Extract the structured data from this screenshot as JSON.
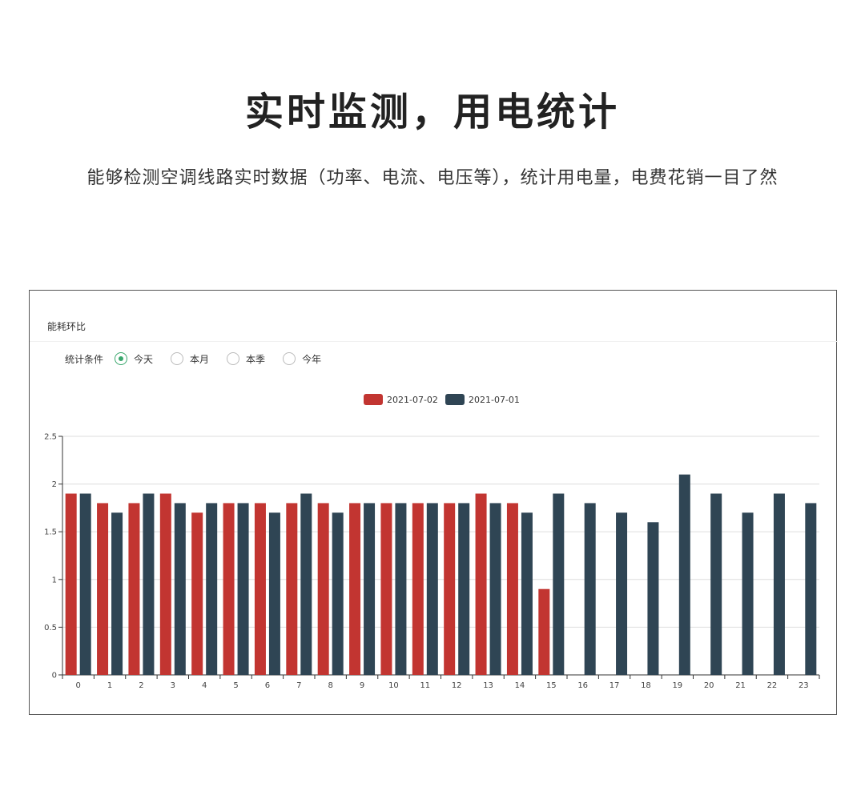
{
  "headline": "实时监测，用电统计",
  "subtitle": "能够检测空调线路实时数据（功率、电流、电压等），统计用电量，电费花销一目了然",
  "panel": {
    "title": "能耗环比",
    "filter_label": "统计条件",
    "options": [
      {
        "label": "今天",
        "checked": true
      },
      {
        "label": "本月",
        "checked": false
      },
      {
        "label": "本季",
        "checked": false
      },
      {
        "label": "今年",
        "checked": false
      }
    ],
    "accent_color": "#3aa76d"
  },
  "chart_data": {
    "type": "bar",
    "categories": [
      "0",
      "1",
      "2",
      "3",
      "4",
      "5",
      "6",
      "7",
      "8",
      "9",
      "10",
      "11",
      "12",
      "13",
      "14",
      "15",
      "16",
      "17",
      "18",
      "19",
      "20",
      "21",
      "22",
      "23"
    ],
    "series": [
      {
        "name": "2021-07-02",
        "color": "#c23531",
        "values": [
          1.9,
          1.8,
          1.8,
          1.9,
          1.7,
          1.8,
          1.8,
          1.8,
          1.8,
          1.8,
          1.8,
          1.8,
          1.8,
          1.9,
          1.8,
          0.9,
          null,
          null,
          null,
          null,
          null,
          null,
          null,
          null
        ]
      },
      {
        "name": "2021-07-01",
        "color": "#2f4554",
        "values": [
          1.9,
          1.7,
          1.9,
          1.8,
          1.8,
          1.8,
          1.7,
          1.9,
          1.7,
          1.8,
          1.8,
          1.8,
          1.8,
          1.8,
          1.7,
          1.9,
          1.8,
          1.7,
          1.6,
          2.1,
          1.9,
          1.7,
          1.9,
          1.8
        ]
      }
    ],
    "y_ticks": [
      "0",
      "0.5",
      "1",
      "1.5",
      "2",
      "2.5"
    ],
    "ylim": [
      0,
      2.5
    ],
    "grid": true,
    "legend_position": "top-center"
  }
}
